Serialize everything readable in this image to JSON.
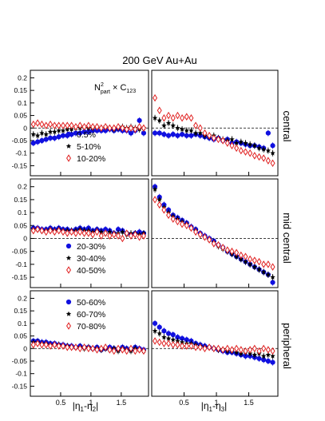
{
  "figure": {
    "title": "200 GeV Au+Au",
    "formula": {
      "n": "N",
      "sup": "2",
      "sub": "part",
      "times": " × C",
      "idx": "123"
    },
    "xlabel_left": {
      "pre": "|η",
      "s1": "1",
      "mid": "-η",
      "s2": "2",
      "post": "|"
    },
    "xlabel_right": {
      "pre": "|η",
      "s1": "1",
      "mid": "-η",
      "s2": "3",
      "post": "|"
    },
    "row_labels": [
      "central",
      "mid central",
      "peripheral"
    ]
  },
  "colors": {
    "blue": "#1010e0",
    "black": "#000000",
    "red": "#e02020"
  },
  "chart_data": [
    {
      "type": "scatter",
      "row": 0,
      "col": 0,
      "x": [
        0.05,
        0.12,
        0.19,
        0.26,
        0.33,
        0.4,
        0.47,
        0.54,
        0.61,
        0.68,
        0.75,
        0.82,
        0.89,
        0.96,
        1.03,
        1.1,
        1.17,
        1.24,
        1.31,
        1.38,
        1.45,
        1.52,
        1.59,
        1.66,
        1.73,
        1.8,
        1.87
      ],
      "xlim": [
        0,
        1.95
      ],
      "ylim": [
        -0.19,
        0.23
      ],
      "yticks": [
        -0.15,
        -0.1,
        -0.05,
        0,
        0.05,
        0.1,
        0.15,
        0.2
      ],
      "ytick_labels": [
        "-0.15",
        "-0.1",
        "-0.05",
        "0",
        "0.05",
        "0.1",
        "0.15",
        "0.2"
      ],
      "xticks": [
        0.5,
        1,
        1.5
      ],
      "xtick_labels": [
        "",
        "",
        ""
      ],
      "series": [
        {
          "name": "0.5%",
          "marker": "circle",
          "color": "blue",
          "values": [
            -0.06,
            -0.055,
            -0.05,
            -0.045,
            -0.04,
            -0.04,
            -0.035,
            -0.03,
            -0.03,
            -0.025,
            -0.02,
            -0.02,
            -0.015,
            -0.015,
            -0.01,
            -0.01,
            -0.01,
            -0.01,
            -0.005,
            -0.01,
            -0.005,
            -0.01,
            -0.01,
            -0.02,
            -0.01,
            0.03,
            -0.02
          ]
        },
        {
          "name": "5-10%",
          "marker": "star",
          "color": "black",
          "values": [
            -0.025,
            -0.03,
            -0.02,
            -0.025,
            -0.015,
            -0.015,
            -0.01,
            -0.01,
            -0.005,
            -0.005,
            0.0,
            0.0,
            0.005,
            0.0,
            0.0,
            0.005,
            0.0,
            0.005,
            0.0,
            -0.005,
            0.0,
            0.005,
            0.0,
            0.005,
            0.0,
            -0.005,
            0.0
          ]
        },
        {
          "name": "10-20%",
          "marker": "diamond",
          "color": "red",
          "values": [
            0.015,
            0.02,
            0.015,
            0.01,
            0.015,
            0.01,
            0.01,
            0.01,
            0.01,
            0.01,
            0.005,
            0.01,
            0.005,
            0.01,
            0.005,
            0.005,
            0.0,
            0.005,
            0.0,
            0.0,
            0.005,
            0.0,
            -0.005,
            0.0,
            -0.005,
            0.005,
            0.0
          ]
        }
      ],
      "legend": [
        {
          "marker": "circle",
          "color": "blue",
          "label": "0.5%"
        },
        {
          "marker": "star",
          "color": "black",
          "label": "5-10%"
        },
        {
          "marker": "diamond",
          "color": "red",
          "label": "10-20%"
        }
      ]
    },
    {
      "type": "scatter",
      "row": 0,
      "col": 1,
      "x": [
        0.05,
        0.12,
        0.19,
        0.26,
        0.33,
        0.4,
        0.47,
        0.54,
        0.61,
        0.68,
        0.75,
        0.82,
        0.89,
        0.96,
        1.03,
        1.1,
        1.17,
        1.24,
        1.31,
        1.38,
        1.45,
        1.52,
        1.59,
        1.66,
        1.73,
        1.8,
        1.87
      ],
      "xlim": [
        0,
        1.95
      ],
      "ylim": [
        -0.19,
        0.23
      ],
      "xticks": [
        0.5,
        1,
        1.5
      ],
      "xtick_labels": [
        "",
        "",
        ""
      ],
      "series": [
        {
          "name": "0.5%",
          "marker": "circle",
          "color": "blue",
          "values": [
            -0.02,
            -0.02,
            -0.025,
            -0.03,
            -0.025,
            -0.03,
            -0.025,
            -0.03,
            -0.03,
            -0.025,
            -0.03,
            -0.035,
            -0.04,
            -0.045,
            -0.04,
            -0.05,
            -0.045,
            -0.06,
            -0.055,
            -0.06,
            -0.065,
            -0.07,
            -0.07,
            -0.075,
            -0.08,
            -0.02,
            -0.07
          ]
        },
        {
          "name": "5-10%",
          "marker": "star",
          "color": "black",
          "values": [
            0.04,
            0.03,
            0.01,
            0.02,
            0.01,
            0.0,
            -0.005,
            -0.01,
            -0.01,
            -0.02,
            -0.02,
            -0.03,
            -0.035,
            -0.03,
            -0.04,
            -0.045,
            -0.05,
            -0.045,
            -0.06,
            -0.055,
            -0.06,
            -0.065,
            -0.07,
            -0.08,
            -0.085,
            -0.09,
            -0.1
          ]
        },
        {
          "name": "10-20%",
          "marker": "diamond",
          "color": "red",
          "values": [
            0.12,
            0.07,
            0.04,
            0.05,
            0.04,
            0.05,
            0.04,
            0.045,
            0.04,
            0.01,
            0.0,
            -0.02,
            -0.03,
            -0.04,
            -0.045,
            -0.05,
            -0.06,
            -0.07,
            -0.08,
            -0.09,
            -0.095,
            -0.1,
            -0.11,
            -0.115,
            -0.12,
            -0.13,
            -0.14
          ]
        }
      ]
    },
    {
      "type": "scatter",
      "row": 1,
      "col": 0,
      "x": [
        0.05,
        0.12,
        0.19,
        0.26,
        0.33,
        0.4,
        0.47,
        0.54,
        0.61,
        0.68,
        0.75,
        0.82,
        0.89,
        0.96,
        1.03,
        1.1,
        1.17,
        1.24,
        1.31,
        1.38,
        1.45,
        1.52,
        1.59,
        1.66,
        1.73,
        1.8,
        1.87
      ],
      "xlim": [
        0,
        1.95
      ],
      "ylim": [
        -0.19,
        0.23
      ],
      "yticks": [
        -0.15,
        -0.1,
        -0.05,
        0,
        0.05,
        0.1,
        0.15,
        0.2
      ],
      "ytick_labels": [
        "-0.15",
        "-0.1",
        "-0.05",
        "0",
        "0.05",
        "0.1",
        "0.15",
        "0.2"
      ],
      "xticks": [
        0.5,
        1,
        1.5
      ],
      "xtick_labels": [
        "",
        "",
        ""
      ],
      "series": [
        {
          "name": "20-30%",
          "marker": "circle",
          "color": "blue",
          "values": [
            0.04,
            0.04,
            0.035,
            0.035,
            0.04,
            0.035,
            0.04,
            0.035,
            0.035,
            0.03,
            0.035,
            0.04,
            0.035,
            0.04,
            0.03,
            0.035,
            0.03,
            0.035,
            0.03,
            0.02,
            0.035,
            0.03,
            0.02,
            0.015,
            0.02,
            0.025,
            0.02
          ]
        },
        {
          "name": "30-40%",
          "marker": "star",
          "color": "black",
          "values": [
            0.035,
            0.035,
            0.03,
            0.03,
            0.035,
            0.03,
            0.035,
            0.03,
            0.03,
            0.03,
            0.03,
            0.035,
            0.03,
            0.03,
            0.025,
            0.03,
            0.025,
            0.02,
            0.025,
            0.02,
            0.02,
            0.025,
            0.015,
            0.02,
            0.02,
            0.015,
            0.02
          ]
        },
        {
          "name": "40-50%",
          "marker": "diamond",
          "color": "red",
          "values": [
            0.03,
            0.035,
            0.03,
            0.025,
            0.03,
            0.025,
            0.03,
            0.025,
            0.02,
            0.025,
            0.02,
            0.025,
            0.02,
            0.02,
            0.015,
            0.025,
            0.01,
            0.02,
            0.01,
            0.015,
            0.01,
            0.0,
            0.02,
            0.01,
            0.015,
            0.005,
            0.01
          ]
        }
      ],
      "legend": [
        {
          "marker": "circle",
          "color": "blue",
          "label": "20-30%"
        },
        {
          "marker": "star",
          "color": "black",
          "label": "30-40%"
        },
        {
          "marker": "diamond",
          "color": "red",
          "label": "40-50%"
        }
      ]
    },
    {
      "type": "scatter",
      "row": 1,
      "col": 1,
      "x": [
        0.05,
        0.12,
        0.19,
        0.26,
        0.33,
        0.4,
        0.47,
        0.54,
        0.61,
        0.68,
        0.75,
        0.82,
        0.89,
        0.96,
        1.03,
        1.1,
        1.17,
        1.24,
        1.31,
        1.38,
        1.45,
        1.52,
        1.59,
        1.66,
        1.73,
        1.8,
        1.87
      ],
      "xlim": [
        0,
        1.95
      ],
      "ylim": [
        -0.19,
        0.23
      ],
      "xticks": [
        0.5,
        1,
        1.5
      ],
      "xtick_labels": [
        "",
        "",
        ""
      ],
      "series": [
        {
          "name": "20-30%",
          "marker": "circle",
          "color": "blue",
          "values": [
            0.2,
            0.16,
            0.13,
            0.11,
            0.09,
            0.08,
            0.07,
            0.06,
            0.045,
            0.035,
            0.02,
            0.01,
            0.0,
            -0.01,
            -0.025,
            -0.035,
            -0.05,
            -0.06,
            -0.07,
            -0.08,
            -0.09,
            -0.1,
            -0.11,
            -0.12,
            -0.13,
            -0.14,
            -0.17
          ]
        },
        {
          "name": "30-40%",
          "marker": "star",
          "color": "black",
          "values": [
            0.19,
            0.15,
            0.12,
            0.1,
            0.085,
            0.075,
            0.065,
            0.055,
            0.04,
            0.03,
            0.015,
            0.005,
            -0.005,
            -0.015,
            -0.03,
            -0.04,
            -0.05,
            -0.06,
            -0.07,
            -0.08,
            -0.09,
            -0.1,
            -0.11,
            -0.12,
            -0.13,
            -0.14,
            -0.15
          ]
        },
        {
          "name": "40-50%",
          "marker": "diamond",
          "color": "red",
          "values": [
            0.15,
            0.13,
            0.11,
            0.09,
            0.075,
            0.065,
            0.055,
            0.05,
            0.04,
            0.025,
            0.015,
            0.005,
            -0.005,
            -0.02,
            -0.025,
            -0.035,
            -0.045,
            -0.05,
            -0.055,
            -0.065,
            -0.07,
            -0.08,
            -0.085,
            -0.09,
            -0.1,
            -0.1,
            -0.11
          ]
        }
      ]
    },
    {
      "type": "scatter",
      "row": 2,
      "col": 0,
      "x": [
        0.05,
        0.12,
        0.19,
        0.26,
        0.33,
        0.4,
        0.47,
        0.54,
        0.61,
        0.68,
        0.75,
        0.82,
        0.89,
        0.96,
        1.03,
        1.1,
        1.17,
        1.24,
        1.31,
        1.38,
        1.45,
        1.52,
        1.59,
        1.66,
        1.73,
        1.8,
        1.87
      ],
      "xlim": [
        0,
        1.95
      ],
      "ylim": [
        -0.19,
        0.23
      ],
      "yticks": [
        -0.15,
        -0.1,
        -0.05,
        0,
        0.05,
        0.1,
        0.15,
        0.2
      ],
      "ytick_labels": [
        "-0.15",
        "-0.1",
        "-0.05",
        "0",
        "0.05",
        "0.1",
        "0.15",
        "0.2"
      ],
      "xticks": [
        0.5,
        1,
        1.5
      ],
      "xtick_labels": [
        "0.5",
        "1",
        "1.5"
      ],
      "series": [
        {
          "name": "50-60%",
          "marker": "circle",
          "color": "blue",
          "values": [
            0.03,
            0.03,
            0.025,
            0.025,
            0.02,
            0.02,
            0.015,
            0.015,
            0.01,
            0.01,
            0.005,
            0.01,
            0.005,
            0.005,
            0.0,
            0.005,
            -0.005,
            0.0,
            0.005,
            0.0,
            -0.005,
            0.005,
            0.0,
            -0.005,
            0.005,
            0.0,
            -0.005
          ]
        },
        {
          "name": "60-70%",
          "marker": "star",
          "color": "black",
          "values": [
            0.025,
            0.025,
            0.02,
            0.02,
            0.015,
            0.015,
            0.015,
            0.01,
            0.01,
            0.005,
            0.005,
            0.005,
            0.0,
            0.005,
            0.0,
            0.0,
            -0.005,
            0.0,
            -0.005,
            0.0,
            -0.01,
            0.0,
            -0.005,
            -0.01,
            0.0,
            -0.005,
            -0.01
          ]
        },
        {
          "name": "70-80%",
          "marker": "diamond",
          "color": "red",
          "values": [
            0.015,
            0.02,
            0.015,
            0.015,
            0.01,
            0.015,
            0.01,
            0.01,
            0.005,
            0.005,
            0.005,
            0.0,
            0.005,
            0.0,
            0.0,
            -0.005,
            0.0,
            0.005,
            -0.005,
            -0.01,
            0.0,
            -0.005,
            -0.01,
            0.0,
            -0.01,
            -0.005,
            -0.01
          ]
        }
      ],
      "legend": [
        {
          "marker": "circle",
          "color": "blue",
          "label": "50-60%"
        },
        {
          "marker": "star",
          "color": "black",
          "label": "60-70%"
        },
        {
          "marker": "diamond",
          "color": "red",
          "label": "70-80%"
        }
      ]
    },
    {
      "type": "scatter",
      "row": 2,
      "col": 1,
      "x": [
        0.05,
        0.12,
        0.19,
        0.26,
        0.33,
        0.4,
        0.47,
        0.54,
        0.61,
        0.68,
        0.75,
        0.82,
        0.89,
        0.96,
        1.03,
        1.1,
        1.17,
        1.24,
        1.31,
        1.38,
        1.45,
        1.52,
        1.59,
        1.66,
        1.73,
        1.8,
        1.87
      ],
      "xlim": [
        0,
        1.95
      ],
      "ylim": [
        -0.19,
        0.23
      ],
      "xticks": [
        0.5,
        1,
        1.5
      ],
      "xtick_labels": [
        "0.5",
        "1",
        "1.5"
      ],
      "series": [
        {
          "name": "50-60%",
          "marker": "circle",
          "color": "blue",
          "values": [
            0.1,
            0.085,
            0.07,
            0.06,
            0.055,
            0.045,
            0.04,
            0.035,
            0.03,
            0.02,
            0.015,
            0.01,
            0.005,
            0.0,
            -0.005,
            -0.01,
            -0.015,
            -0.015,
            -0.02,
            -0.025,
            -0.03,
            -0.03,
            -0.035,
            -0.04,
            -0.045,
            -0.05,
            -0.055
          ]
        },
        {
          "name": "60-70%",
          "marker": "star",
          "color": "black",
          "values": [
            0.07,
            0.06,
            0.045,
            0.04,
            0.035,
            0.03,
            0.025,
            0.02,
            0.02,
            0.015,
            0.01,
            0.005,
            0.005,
            0.0,
            -0.005,
            -0.005,
            -0.01,
            -0.01,
            -0.015,
            -0.02,
            -0.015,
            -0.02,
            -0.025,
            -0.02,
            -0.03,
            -0.025,
            -0.03
          ]
        },
        {
          "name": "70-80%",
          "marker": "diamond",
          "color": "red",
          "values": [
            0.03,
            0.025,
            0.02,
            0.02,
            0.015,
            0.015,
            0.01,
            0.01,
            0.01,
            0.005,
            0.005,
            0.0,
            0.005,
            0.0,
            0.0,
            -0.005,
            0.0,
            -0.005,
            0.0,
            -0.005,
            -0.01,
            -0.005,
            0.0,
            -0.01,
            0.0,
            -0.005,
            -0.01
          ]
        }
      ]
    }
  ]
}
